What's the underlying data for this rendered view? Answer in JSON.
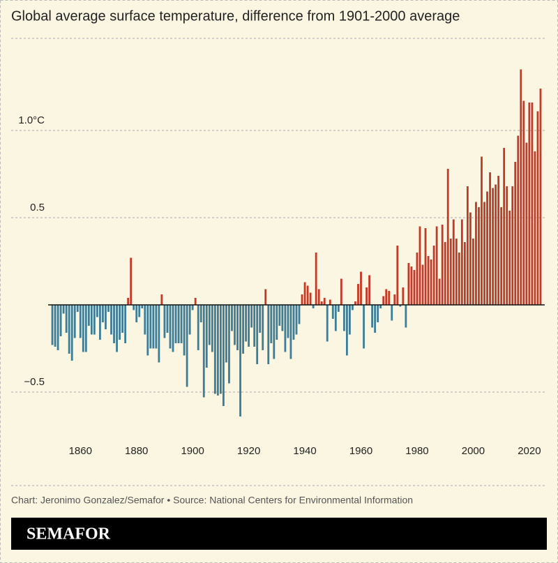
{
  "chart_data": {
    "type": "bar",
    "title": "Global average surface temperature, difference from 1901-2000 average",
    "source": "Chart: Jeronimo Gonzalez/Semafor • Source: National Centers for Environmental Information",
    "brand": "SEMAFOR",
    "positive_color": "#c33a26",
    "negative_color": "#3f7c96",
    "grid": true,
    "xlim": [
      1848.5,
      2025.5
    ],
    "xticks": [
      1860,
      1880,
      1900,
      1920,
      1940,
      1960,
      1980,
      2000,
      2020
    ],
    "ylim": [
      -0.7,
      1.4
    ],
    "yticks": [
      {
        "value": -0.5,
        "label": "−0.5"
      },
      0.5,
      {
        "value": 1,
        "label": "1.0°C"
      }
    ],
    "x": [
      1850,
      1851,
      1852,
      1853,
      1854,
      1855,
      1856,
      1857,
      1858,
      1859,
      1860,
      1861,
      1862,
      1863,
      1864,
      1865,
      1866,
      1867,
      1868,
      1869,
      1870,
      1871,
      1872,
      1873,
      1874,
      1875,
      1876,
      1877,
      1878,
      1879,
      1880,
      1881,
      1882,
      1883,
      1884,
      1885,
      1886,
      1887,
      1888,
      1889,
      1890,
      1891,
      1892,
      1893,
      1894,
      1895,
      1896,
      1897,
      1898,
      1899,
      1900,
      1901,
      1902,
      1903,
      1904,
      1905,
      1906,
      1907,
      1908,
      1909,
      1910,
      1911,
      1912,
      1913,
      1914,
      1915,
      1916,
      1917,
      1918,
      1919,
      1920,
      1921,
      1922,
      1923,
      1924,
      1925,
      1926,
      1927,
      1928,
      1929,
      1930,
      1931,
      1932,
      1933,
      1934,
      1935,
      1936,
      1937,
      1938,
      1939,
      1940,
      1941,
      1942,
      1943,
      1944,
      1945,
      1946,
      1947,
      1948,
      1949,
      1950,
      1951,
      1952,
      1953,
      1954,
      1955,
      1956,
      1957,
      1958,
      1959,
      1960,
      1961,
      1962,
      1963,
      1964,
      1965,
      1966,
      1967,
      1968,
      1969,
      1970,
      1971,
      1972,
      1973,
      1974,
      1975,
      1976,
      1977,
      1978,
      1979,
      1980,
      1981,
      1982,
      1983,
      1984,
      1985,
      1986,
      1987,
      1988,
      1989,
      1990,
      1991,
      1992,
      1993,
      1994,
      1995,
      1996,
      1997,
      1998,
      1999,
      2000,
      2001,
      2002,
      2003,
      2004,
      2005,
      2006,
      2007,
      2008,
      2009,
      2010,
      2011,
      2012,
      2013,
      2014,
      2015,
      2016,
      2017,
      2018,
      2019,
      2020,
      2021,
      2022,
      2023,
      2024
    ],
    "values": [
      -0.23,
      -0.24,
      -0.26,
      -0.18,
      -0.05,
      -0.16,
      -0.28,
      -0.32,
      -0.19,
      -0.04,
      -0.19,
      -0.27,
      -0.27,
      -0.12,
      -0.17,
      -0.17,
      -0.07,
      -0.2,
      -0.1,
      -0.14,
      -0.04,
      -0.17,
      -0.22,
      -0.27,
      -0.2,
      -0.16,
      -0.22,
      0.04,
      0.27,
      -0.03,
      -0.1,
      -0.07,
      -0.02,
      -0.17,
      -0.29,
      -0.25,
      -0.25,
      -0.25,
      -0.33,
      0.06,
      -0.19,
      -0.16,
      -0.25,
      -0.27,
      -0.22,
      -0.22,
      -0.22,
      -0.29,
      -0.47,
      -0.17,
      -0.03,
      0.04,
      -0.26,
      -0.1,
      -0.53,
      -0.36,
      -0.23,
      -0.27,
      -0.51,
      -0.52,
      -0.51,
      -0.58,
      -0.33,
      -0.45,
      -0.15,
      -0.23,
      -0.26,
      -0.64,
      -0.28,
      -0.21,
      -0.24,
      -0.13,
      -0.24,
      -0.34,
      -0.16,
      -0.26,
      0.09,
      -0.34,
      -0.22,
      -0.31,
      -0.2,
      -0.12,
      -0.15,
      -0.27,
      -0.19,
      -0.31,
      -0.2,
      -0.17,
      -0.11,
      0.06,
      0.13,
      0.11,
      0.07,
      -0.02,
      0.3,
      0.09,
      0.02,
      0.04,
      -0.21,
      0.03,
      -0.08,
      -0.15,
      -0.04,
      0.15,
      -0.15,
      -0.29,
      -0.17,
      -0.03,
      0.02,
      0.12,
      0.19,
      -0.25,
      0.1,
      0.17,
      -0.13,
      -0.16,
      -0.1,
      -0.02,
      0.05,
      0.09,
      0.08,
      -0.09,
      0.06,
      0.34,
      -0.01,
      0.1,
      -0.13,
      0.24,
      0.22,
      0.2,
      0.3,
      0.45,
      0.23,
      0.44,
      0.28,
      0.26,
      0.34,
      0.45,
      0.15,
      0.46,
      0.36,
      0.78,
      0.38,
      0.49,
      0.38,
      0.3,
      0.49,
      0.36,
      0.68,
      0.53,
      0.38,
      0.59,
      0.56,
      0.85,
      0.59,
      0.65,
      0.76,
      0.67,
      0.69,
      0.74,
      0.56,
      0.9,
      0.68,
      0.54,
      0.68,
      0.82,
      0.97,
      1.35,
      1.17,
      0.93,
      1.16,
      1.16,
      0.88,
      1.11,
      1.24
    ]
  }
}
